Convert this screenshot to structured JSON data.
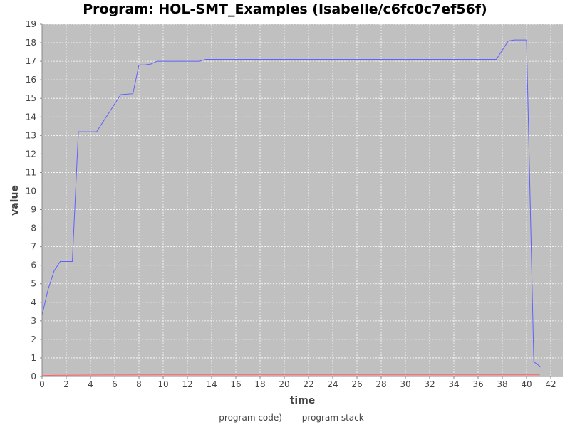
{
  "chart_data": {
    "type": "line",
    "title": "Program: HOL-SMT_Examples (Isabelle/c6fc0c7ef56f)",
    "xlabel": "time",
    "ylabel": "value",
    "xlim": [
      0,
      43
    ],
    "ylim": [
      0,
      19
    ],
    "x_ticks": [
      0,
      2,
      4,
      6,
      8,
      10,
      12,
      14,
      16,
      18,
      20,
      22,
      24,
      26,
      28,
      30,
      32,
      34,
      36,
      38,
      40,
      42
    ],
    "y_ticks": [
      0,
      1,
      2,
      3,
      4,
      5,
      6,
      7,
      8,
      9,
      10,
      11,
      12,
      13,
      14,
      15,
      16,
      17,
      18,
      19
    ],
    "grid": true,
    "legend_position": "bottom",
    "background": "#c0c0c0",
    "series": [
      {
        "name": "program code)",
        "color": "#ff6060",
        "points": [
          [
            0,
            0.05
          ],
          [
            1,
            0.06
          ],
          [
            2,
            0.07
          ],
          [
            5,
            0.08
          ],
          [
            10,
            0.09
          ],
          [
            14,
            0.09
          ],
          [
            41.1,
            0.09
          ]
        ]
      },
      {
        "name": "program stack",
        "color": "#6060ff",
        "points": [
          [
            0,
            3.3
          ],
          [
            0.5,
            4.7
          ],
          [
            1,
            5.7
          ],
          [
            1.5,
            6.2
          ],
          [
            2.5,
            6.2
          ],
          [
            3,
            13.2
          ],
          [
            4.5,
            13.2
          ],
          [
            5,
            13.7
          ],
          [
            6.5,
            15.2
          ],
          [
            7.5,
            15.25
          ],
          [
            8,
            16.8
          ],
          [
            8.5,
            16.8
          ],
          [
            9,
            16.85
          ],
          [
            9.5,
            17.0
          ],
          [
            13,
            17.0
          ],
          [
            13.5,
            17.1
          ],
          [
            37.5,
            17.1
          ],
          [
            38.5,
            18.1
          ],
          [
            39,
            18.15
          ],
          [
            40,
            18.15
          ],
          [
            40.6,
            0.8
          ],
          [
            41.2,
            0.5
          ]
        ]
      }
    ]
  }
}
